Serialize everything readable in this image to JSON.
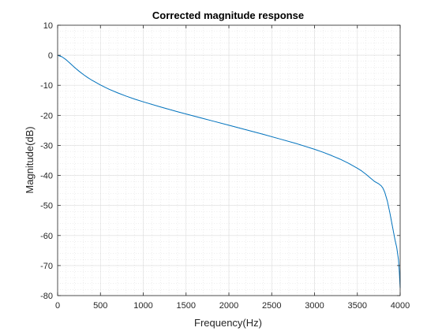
{
  "chart_data": {
    "type": "line",
    "title": "Corrected magnitude response",
    "xlabel": "Frequency(Hz)",
    "ylabel": "Magnitude(dB)",
    "xlim": [
      0,
      4000
    ],
    "ylim": [
      -80,
      10
    ],
    "xticks": [
      0,
      500,
      1000,
      1500,
      2000,
      2500,
      3000,
      3500,
      4000
    ],
    "yticks": [
      10,
      0,
      -10,
      -20,
      -30,
      -40,
      -50,
      -60,
      -70,
      -80
    ],
    "grid": true,
    "minor_grid": true,
    "series": [
      {
        "color": "#0072bd",
        "x": [
          0,
          50,
          100,
          150,
          200,
          250,
          300,
          350,
          400,
          500,
          600,
          700,
          800,
          900,
          1000,
          1200,
          1400,
          1600,
          1800,
          2000,
          2200,
          2400,
          2600,
          2800,
          3000,
          3100,
          3200,
          3300,
          3400,
          3500,
          3550,
          3600,
          3650,
          3700,
          3750,
          3780,
          3800,
          3820,
          3850,
          3880,
          3900,
          3920,
          3940,
          3960,
          3980,
          3990,
          4000
        ],
        "y": [
          0,
          -0.5,
          -1.5,
          -2.8,
          -4.1,
          -5.3,
          -6.4,
          -7.4,
          -8.3,
          -9.9,
          -11.3,
          -12.5,
          -13.6,
          -14.6,
          -15.5,
          -17.2,
          -18.8,
          -20.3,
          -21.8,
          -23.3,
          -24.8,
          -26.3,
          -27.9,
          -29.5,
          -31.3,
          -32.3,
          -33.4,
          -34.6,
          -36.0,
          -37.6,
          -38.5,
          -39.6,
          -40.8,
          -42.0,
          -42.8,
          -43.5,
          -44.3,
          -45.6,
          -48.5,
          -52.5,
          -55.5,
          -58.5,
          -61.5,
          -64.0,
          -68.0,
          -72.0,
          -77.5
        ]
      }
    ]
  }
}
